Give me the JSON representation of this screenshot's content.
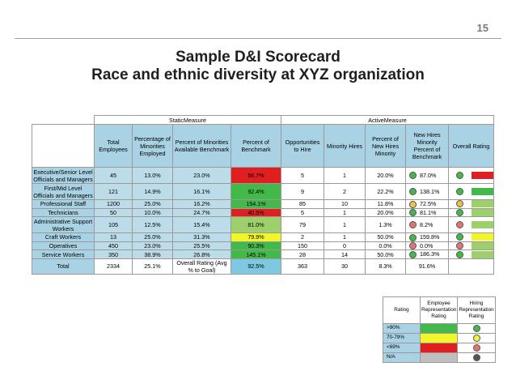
{
  "page_number": "15",
  "title_line1": "Sample D&I Scorecard",
  "title_line2": "Race and ethnic diversity at XYZ organization",
  "group_headers": {
    "static": "StaticMeasure",
    "active": "ActiveMeasure"
  },
  "columns": [
    "Total Employees",
    "Percentage of Minorities Employed",
    "Percent of Minorities Available Benchmark",
    "Percent of Benchmark",
    "Opportunities to Hire",
    "Minority Hires",
    "Percent of New Hires Minority",
    "New Hires Minority Percent of Benchmark",
    "Overall Rating"
  ],
  "rows": [
    {
      "label": "Executive/Senior Level Officials and Managers",
      "total": "45",
      "pct_min": "13.0%",
      "avail": "23.0%",
      "pct_bench": "56.7%",
      "bench_color": "#e02020",
      "opp": "5",
      "hires": "1",
      "pct_new": "20.0%",
      "new_bench": "87.0%",
      "dot": "#43b94a",
      "rating": "#43b94a/#e02020"
    },
    {
      "label": "First/Mid Level Officials and Managers",
      "total": "121",
      "pct_min": "14.9%",
      "avail": "16.1%",
      "pct_bench": "92.4%",
      "bench_color": "#43b94a",
      "opp": "9",
      "hires": "2",
      "pct_new": "22.2%",
      "new_bench": "138.1%",
      "dot": "#43b94a",
      "rating": "#43b94a"
    },
    {
      "label": "Professional Staff",
      "total": "1200",
      "pct_min": "25.0%",
      "avail": "16.2%",
      "pct_bench": "154.1%",
      "bench_color": "#43b94a",
      "opp": "85",
      "hires": "10",
      "pct_new": "11.8%",
      "new_bench": "72.5%",
      "dot": "#f0c040",
      "rating": "#9dd06a"
    },
    {
      "label": "Technicians",
      "total": "50",
      "pct_min": "10.0%",
      "avail": "24.7%",
      "pct_bench": "40.5%",
      "bench_color": "#e02020",
      "opp": "5",
      "hires": "1",
      "pct_new": "20.0%",
      "new_bench": "81.1%",
      "dot": "#43b94a",
      "rating": "#9dd06a"
    },
    {
      "label": "Administrative Support Workers",
      "total": "105",
      "pct_min": "12.5%",
      "avail": "15.4%",
      "pct_bench": "81.0%",
      "bench_color": "#9dd06a",
      "opp": "79",
      "hires": "1",
      "pct_new": "1.3%",
      "new_bench": "8.2%",
      "dot": "#e57373",
      "rating": "#9dd06a"
    },
    {
      "label": "Craft Workers",
      "total": "13",
      "pct_min": "25.0%",
      "avail": "31.3%",
      "pct_bench": "79.9%",
      "bench_color": "#f1f52a",
      "opp": "2",
      "hires": "1",
      "pct_new": "50.0%",
      "new_bench": "159.8%",
      "dot": "#43b94a",
      "rating": "#f1f52a"
    },
    {
      "label": "Operatives",
      "total": "450",
      "pct_min": "23.0%",
      "avail": "25.5%",
      "pct_bench": "90.3%",
      "bench_color": "#43b94a",
      "opp": "150",
      "hires": "0",
      "pct_new": "0.0%",
      "new_bench": "0.0%",
      "dot": "#e57373",
      "rating": "#9dd06a"
    },
    {
      "label": "Service Workers",
      "total": "350",
      "pct_min": "38.9%",
      "avail": "26.8%",
      "pct_bench": "145.1%",
      "bench_color": "#43b94a",
      "opp": "28",
      "hires": "14",
      "pct_new": "50.0%",
      "new_bench": "186.3%",
      "dot": "#43b94a",
      "rating": "#9dd06a"
    }
  ],
  "total_row": {
    "label": "Total",
    "total": "2334",
    "pct_min": "25.1%",
    "overall_label": "Overall Rating (Avg % to Goal)",
    "pct_bench": "92.5%",
    "opp": "363",
    "hires": "30",
    "pct_new": "8.3%",
    "new_bench": "91.6%"
  },
  "legend": {
    "headers": [
      "Rating",
      "Employee Representation Rating",
      "Hiring Representation Rating"
    ],
    "rows": [
      {
        "label": ">90%",
        "color": "#43b94a",
        "dot": "#43b94a"
      },
      {
        "label": "70-79%",
        "color": "#f1f52a",
        "dot": "#f1f52a"
      },
      {
        "label": "<69%",
        "color": "#e02020",
        "dot": "#e57373"
      },
      {
        "label": "N/A",
        "color": "#bfbfbf",
        "dot": "#555555"
      }
    ]
  }
}
